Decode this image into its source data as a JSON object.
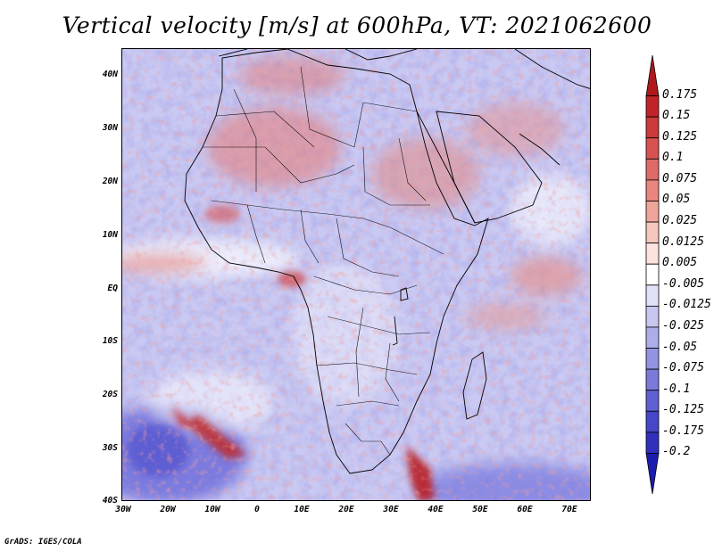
{
  "title": "Vertical velocity [m/s] at 600hPa, VT: 2021062600",
  "footer": "GrADS: IGES/COLA",
  "map": {
    "region": "Africa",
    "lon_range": [
      -30,
      75
    ],
    "lat_range": [
      -40,
      45
    ],
    "y_ticks": [
      "40N",
      "30N",
      "20N",
      "10N",
      "EQ",
      "10S",
      "20S",
      "30S",
      "40S"
    ],
    "x_ticks": [
      "30W",
      "20W",
      "10W",
      "0",
      "10E",
      "20E",
      "30E",
      "40E",
      "50E",
      "60E",
      "70E"
    ]
  },
  "colorbar": {
    "labels": [
      "0.175",
      "0.15",
      "0.125",
      "0.1",
      "0.075",
      "0.05",
      "0.025",
      "0.0125",
      "0.005",
      "-0.005",
      "-0.0125",
      "-0.025",
      "-0.05",
      "-0.075",
      "-0.1",
      "-0.125",
      "-0.175",
      "-0.2"
    ],
    "colors": [
      "#b0181c",
      "#c02428",
      "#cc3a3c",
      "#d85252",
      "#e06a68",
      "#e8867f",
      "#f0a59b",
      "#f7c6bc",
      "#fce3dd",
      "#ffffff",
      "#e1e1f7",
      "#c7c7f0",
      "#adadea",
      "#9393e3",
      "#7a7adb",
      "#6060d2",
      "#4646c8",
      "#3030bd",
      "#1c1cb0"
    ]
  }
}
